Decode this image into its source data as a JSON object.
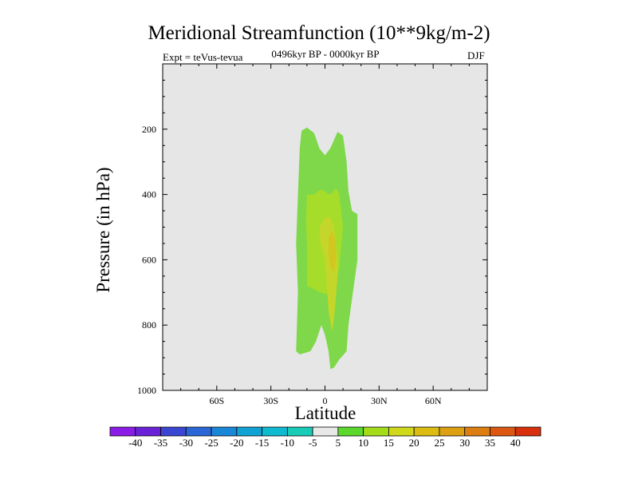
{
  "chart_data": {
    "type": "heatmap",
    "title": "Meridional Streamfunction (10**9kg/m-2)",
    "left_label": "Expt = teVus-tevua",
    "center_label": "0496kyr BP - 0000kyr BP",
    "right_label": "DJF",
    "xlabel": "Latitude",
    "ylabel": "Pressure (in hPa)",
    "xlim": [
      -90,
      90
    ],
    "ylim": [
      1000,
      0
    ],
    "x_ticks": [
      {
        "value": -60,
        "label": "60S"
      },
      {
        "value": -30,
        "label": "30S"
      },
      {
        "value": 0,
        "label": "0"
      },
      {
        "value": 30,
        "label": "30N"
      },
      {
        "value": 60,
        "label": "60N"
      }
    ],
    "y_ticks": [
      {
        "value": 200,
        "label": "200"
      },
      {
        "value": 400,
        "label": "400"
      },
      {
        "value": 600,
        "label": "600"
      },
      {
        "value": 800,
        "label": "800"
      },
      {
        "value": 1000,
        "label": "1000"
      }
    ],
    "background_color": "#e6e6e6",
    "colorbar": {
      "levels": [
        -40,
        -35,
        -30,
        -25,
        -20,
        -15,
        -10,
        -5,
        5,
        10,
        15,
        20,
        25,
        30,
        35,
        40
      ],
      "labels": [
        "-40",
        "-35",
        "-30",
        "-25",
        "-20",
        "-15",
        "-10",
        "-5",
        "5",
        "10",
        "15",
        "20",
        "25",
        "30",
        "35",
        "40"
      ],
      "colors": [
        "#8a1ce6",
        "#6a22d8",
        "#3a46d2",
        "#2a66d6",
        "#1a86d8",
        "#10a2d4",
        "#0ebad0",
        "#18ccb8",
        "#e8e8e8",
        "#5cd82c",
        "#a4dc1a",
        "#d0d81a",
        "#dcbc12",
        "#dca012",
        "#dc7e12",
        "#dc5812",
        "#d8300c"
      ]
    },
    "regions": [
      {
        "level": "5 to 10",
        "color": "#7ed84a",
        "polygon": [
          [
            -16,
            880
          ],
          [
            -15,
            700
          ],
          [
            -16,
            550
          ],
          [
            -15,
            400
          ],
          [
            -14,
            260
          ],
          [
            -13,
            205
          ],
          [
            -10,
            195
          ],
          [
            -6,
            212
          ],
          [
            -3,
            260
          ],
          [
            0,
            280
          ],
          [
            3,
            258
          ],
          [
            7,
            208
          ],
          [
            10,
            220
          ],
          [
            12,
            300
          ],
          [
            13,
            390
          ],
          [
            15,
            450
          ],
          [
            18,
            460
          ],
          [
            18,
            600
          ],
          [
            15,
            720
          ],
          [
            13,
            800
          ],
          [
            12,
            880
          ],
          [
            8,
            905
          ],
          [
            5,
            930
          ],
          [
            3,
            935
          ],
          [
            2,
            880
          ],
          [
            0,
            830
          ],
          [
            -2,
            800
          ],
          [
            -5,
            850
          ],
          [
            -8,
            880
          ],
          [
            -11,
            885
          ],
          [
            -14,
            890
          ]
        ]
      },
      {
        "level": "10 to 15",
        "color": "#a6dc2a",
        "polygon": [
          [
            -10,
            400
          ],
          [
            -6,
            400
          ],
          [
            -4,
            390
          ],
          [
            -2,
            385
          ],
          [
            0,
            390
          ],
          [
            2,
            400
          ],
          [
            4,
            395
          ],
          [
            6,
            380
          ],
          [
            8,
            400
          ],
          [
            9,
            450
          ],
          [
            10,
            500
          ],
          [
            9,
            560
          ],
          [
            8,
            620
          ],
          [
            6,
            680
          ],
          [
            3,
            700
          ],
          [
            0,
            705
          ],
          [
            -3,
            700
          ],
          [
            -6,
            690
          ],
          [
            -10,
            680
          ],
          [
            -10,
            560
          ],
          [
            -10.5,
            480
          ]
        ]
      },
      {
        "level": "15 to 20",
        "color": "#c4d62a",
        "polygon": [
          [
            -3,
            500
          ],
          [
            0,
            470
          ],
          [
            3,
            470
          ],
          [
            5,
            500
          ],
          [
            6,
            550
          ],
          [
            7,
            600
          ],
          [
            7,
            650
          ],
          [
            6,
            720
          ],
          [
            5,
            780
          ],
          [
            4,
            820
          ],
          [
            2,
            760
          ],
          [
            1,
            680
          ],
          [
            0,
            600
          ],
          [
            -2,
            560
          ],
          [
            -3,
            530
          ]
        ]
      },
      {
        "level": "20 to 25",
        "color": "#d2c620",
        "polygon": [
          [
            2,
            530
          ],
          [
            4,
            510
          ],
          [
            6,
            545
          ],
          [
            6,
            600
          ],
          [
            5,
            640
          ],
          [
            3,
            620
          ],
          [
            2,
            580
          ]
        ]
      }
    ]
  }
}
